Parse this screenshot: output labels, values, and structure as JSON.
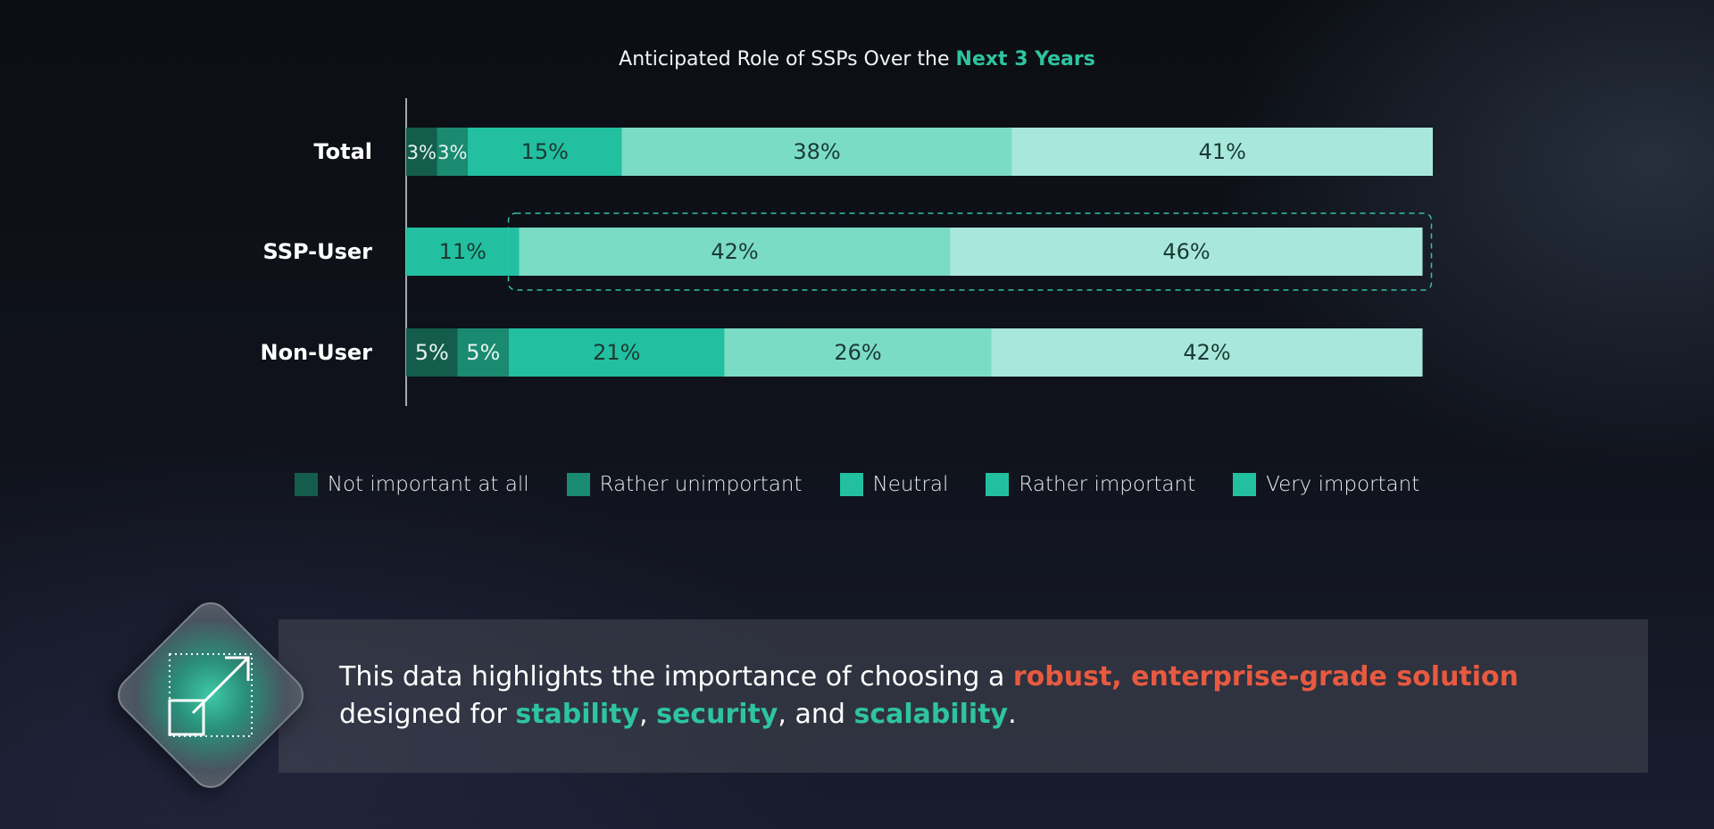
{
  "chart_data": {
    "type": "bar",
    "orientation": "horizontal",
    "stacked": true,
    "title": "Anticipated Role of SSPs Over the Next 3 Years",
    "title_parts": {
      "main": "Anticipated Role of SSPs Over the ",
      "highlight": "Next 3 Years"
    },
    "categories": [
      "Total",
      "SSP-User",
      "Non-User"
    ],
    "series": [
      {
        "name": "Not important at all",
        "color": "#145c4c",
        "values": [
          3,
          0,
          5
        ],
        "labels": [
          "3%",
          "",
          "5%"
        ]
      },
      {
        "name": "Rather unimportant",
        "color": "#1a8a70",
        "values": [
          3,
          0,
          5
        ],
        "labels": [
          "3%",
          "",
          "5%"
        ]
      },
      {
        "name": "Neutral",
        "color": "#22c0a0",
        "values": [
          15,
          11,
          21
        ],
        "labels": [
          "15%",
          "11%",
          "21%"
        ]
      },
      {
        "name": "Rather important",
        "color": "#7bdcc6",
        "values": [
          38,
          42,
          26
        ],
        "labels": [
          "38%",
          "42%",
          "26%"
        ]
      },
      {
        "name": "Very important",
        "color": "#a8e8dc",
        "values": [
          41,
          46,
          42
        ],
        "labels": [
          "41%",
          "46%",
          "42%"
        ]
      }
    ],
    "legend_position": "bottom",
    "legend_swatch_colors": [
      "#145c4c",
      "#1a8a70",
      "#22c0a0",
      "#22c0a0",
      "#22c0a0"
    ],
    "highlight": {
      "category": "SSP-User",
      "series": [
        "Rather important",
        "Very important"
      ],
      "style": "dashed-outline"
    },
    "xlim": [
      0,
      100
    ],
    "grid": false
  },
  "callout": {
    "text_before": "This data highlights the importance of choosing a ",
    "highlight_red": "robust, enterprise-grade solution",
    "text_middle": " designed for ",
    "highlight_1": "stability",
    "sep_1": ", ",
    "highlight_2": "security",
    "sep_2": ", and ",
    "highlight_3": "scalability",
    "text_end": ".",
    "icon": "expand-arrow-icon"
  }
}
